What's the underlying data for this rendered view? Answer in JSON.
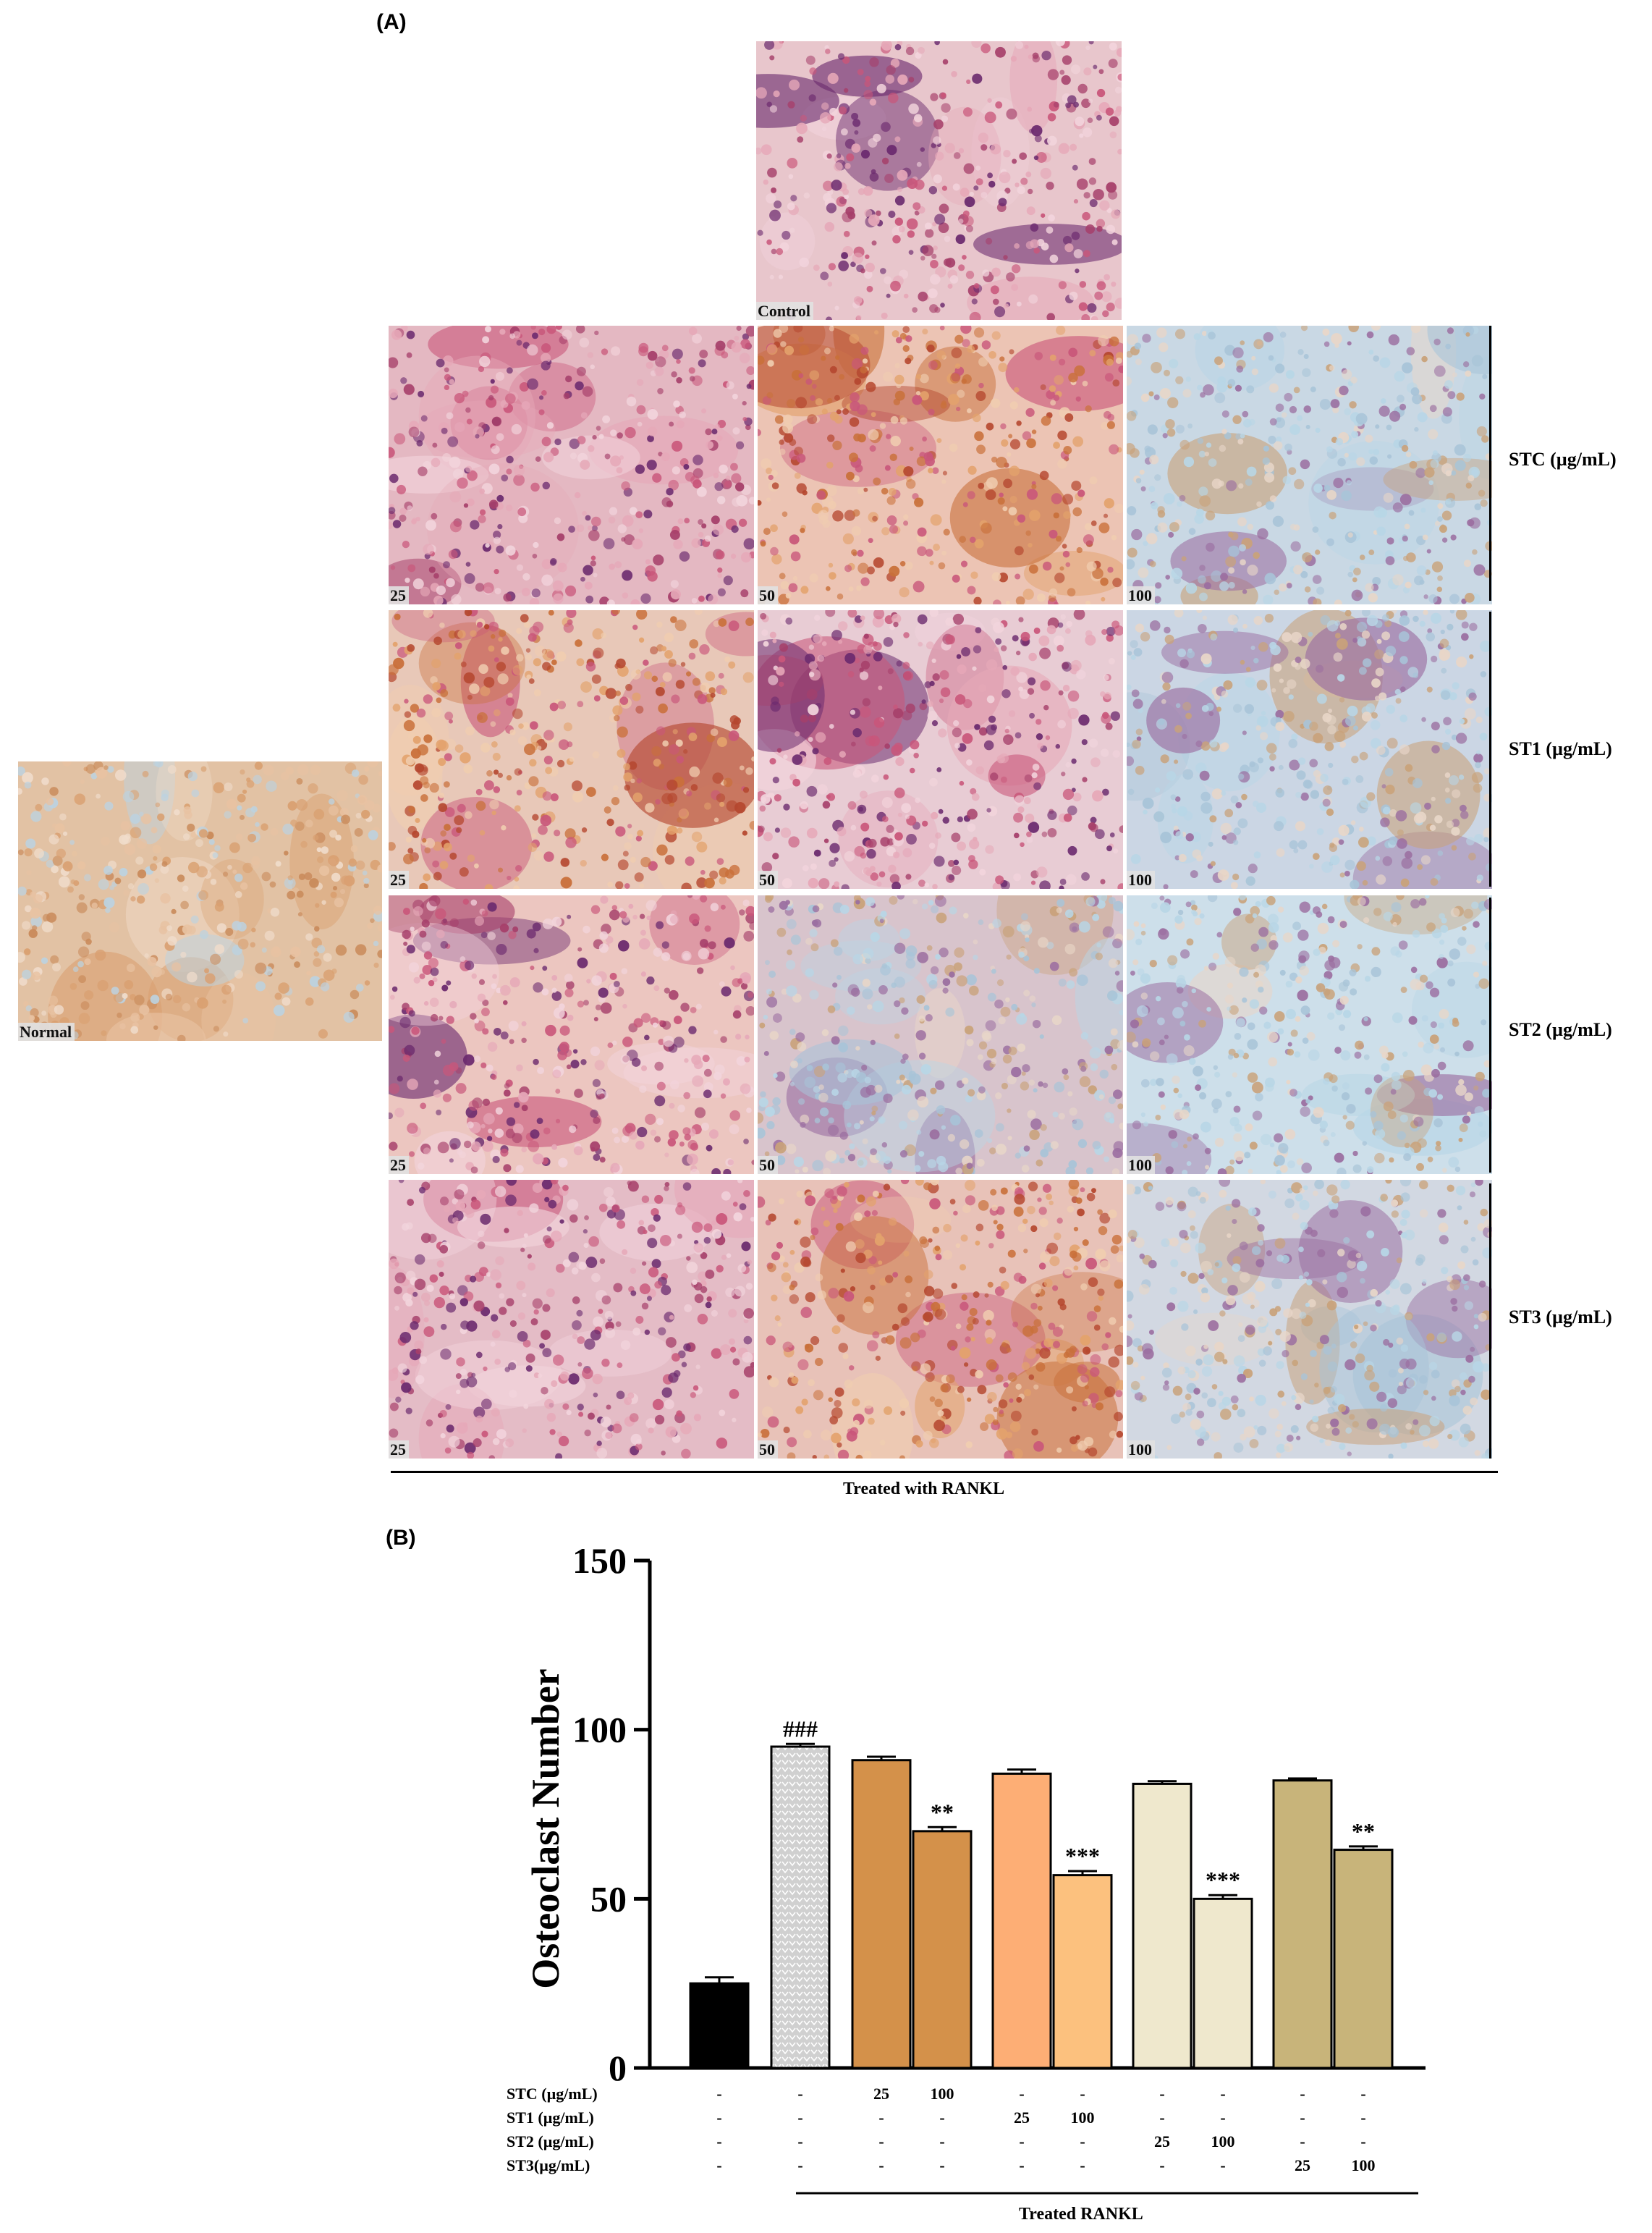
{
  "figure": {
    "panel_a_label": "(A)",
    "panel_b_label": "(B)"
  },
  "panel_a": {
    "control_label": "Control",
    "normal_label": "Normal",
    "rows": [
      {
        "label": "STC (µg/mL)",
        "doses": [
          "25",
          "50",
          "100"
        ]
      },
      {
        "label": "ST1 (µg/mL)",
        "doses": [
          "25",
          "50",
          "100"
        ]
      },
      {
        "label": "ST2 (µg/mL)",
        "doses": [
          "25",
          "50",
          "100"
        ]
      },
      {
        "label": "ST3 (µg/mL)",
        "doses": [
          "25",
          "50",
          "100"
        ]
      }
    ],
    "treated_label": "Treated  with  RANKL"
  },
  "chart_data": {
    "type": "bar",
    "ylabel": "Osteoclast Number",
    "ylim": [
      0,
      150
    ],
    "yticks": [
      0,
      50,
      100,
      150
    ],
    "bars": [
      {
        "name": "Normal",
        "value": 25,
        "error": 1.8,
        "color": "#000000",
        "pattern": "solid",
        "annotation": ""
      },
      {
        "name": "Control",
        "value": 95,
        "error": 0.8,
        "color": "#d8d8d8",
        "pattern": "dots",
        "annotation": "###"
      },
      {
        "name": "STC 25",
        "value": 91,
        "error": 1.0,
        "color": "#d4914a",
        "pattern": "solid",
        "annotation": ""
      },
      {
        "name": "STC 100",
        "value": 70,
        "error": 1.2,
        "color": "#d4914a",
        "pattern": "solid",
        "annotation": "**"
      },
      {
        "name": "ST1 25",
        "value": 87,
        "error": 1.2,
        "color": "#fdae75",
        "pattern": "solid",
        "annotation": ""
      },
      {
        "name": "ST1 100",
        "value": 57,
        "error": 1.2,
        "color": "#fcc17e",
        "pattern": "solid",
        "annotation": "***"
      },
      {
        "name": "ST2 25",
        "value": 84,
        "error": 0.8,
        "color": "#efe8cd",
        "pattern": "solid",
        "annotation": ""
      },
      {
        "name": "ST2 100",
        "value": 50,
        "error": 1.1,
        "color": "#efe8cd",
        "pattern": "solid",
        "annotation": "***"
      },
      {
        "name": "ST3 25",
        "value": 85,
        "error": 0.6,
        "color": "#c8b47a",
        "pattern": "solid",
        "annotation": ""
      },
      {
        "name": "ST3 100",
        "value": 64.5,
        "error": 1.0,
        "color": "#c8b47a",
        "pattern": "solid",
        "annotation": "**"
      }
    ],
    "table_rows": [
      {
        "label": "STC (µg/mL)",
        "cells": [
          "-",
          "-",
          "25",
          "100",
          "-",
          "-",
          "-",
          "-",
          "-",
          "-"
        ]
      },
      {
        "label": "ST1 (µg/mL)",
        "cells": [
          "-",
          "-",
          "-",
          "-",
          "25",
          "100",
          "-",
          "-",
          "-",
          "-"
        ]
      },
      {
        "label": "ST2 (µg/mL)",
        "cells": [
          "-",
          "-",
          "-",
          "-",
          "-",
          "-",
          "25",
          "100",
          "-",
          "-"
        ]
      },
      {
        "label": "ST3(µg/mL)",
        "cells": [
          "-",
          "-",
          "-",
          "-",
          "-",
          "-",
          "-",
          "-",
          "25",
          "100"
        ]
      }
    ],
    "group_label": "Treated RANKL"
  },
  "colors": {
    "stain_pink": "#c9567a",
    "stain_purple": "#6b2a6e",
    "stain_orange": "#c9703a",
    "background_blue": "#b8d6e6"
  }
}
